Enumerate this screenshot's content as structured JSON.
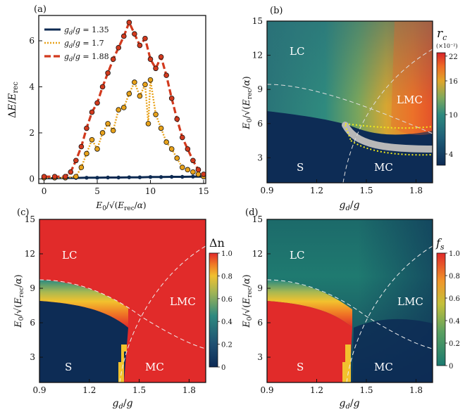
{
  "chart_data": [
    {
      "panel": "(a)",
      "type": "line",
      "xlabel": "E_0/√(E_rec/α)",
      "ylabel": "ΔE/E_rec",
      "xlim": [
        -0.5,
        15.2
      ],
      "ylim": [
        -0.2,
        7.1
      ],
      "xticks": [
        "0",
        "5",
        "10",
        "15"
      ],
      "yticks": [
        "0",
        "2",
        "4",
        "6"
      ],
      "legend_position": "top-left",
      "series": [
        {
          "name": "g_d/g = 1.35",
          "color": "#0d2a52",
          "style": "solid",
          "x": [
            0,
            1,
            2,
            3,
            4,
            5,
            6,
            7,
            8,
            9,
            10,
            11,
            12,
            13,
            14,
            15
          ],
          "y": [
            0.03,
            0.03,
            0.04,
            0.04,
            0.05,
            0.05,
            0.06,
            0.06,
            0.07,
            0.07,
            0.08,
            0.08,
            0.09,
            0.09,
            0.1,
            0.1
          ]
        },
        {
          "name": "g_d/g = 1.7",
          "color": "#e8a21a",
          "style": "dotted",
          "x": [
            0,
            1,
            2,
            3,
            3.5,
            4,
            4.5,
            5,
            5.5,
            6,
            6.5,
            7,
            7.5,
            8,
            8.5,
            9,
            9.5,
            9.8,
            10,
            10.5,
            11,
            11.5,
            12,
            12.5,
            13,
            13.5,
            14,
            14.5,
            15
          ],
          "y": [
            0.05,
            0.05,
            0.05,
            0.1,
            0.5,
            1.1,
            1.7,
            1.3,
            2.0,
            2.4,
            2.1,
            3.0,
            3.1,
            3.7,
            4.2,
            3.6,
            4.1,
            2.4,
            4.3,
            2.8,
            2.2,
            1.6,
            1.3,
            0.9,
            0.5,
            0.4,
            0.3,
            0.2,
            0.1
          ]
        },
        {
          "name": "g_d/g = 1.88",
          "color": "#d23a1e",
          "style": "dashed",
          "x": [
            0,
            1,
            2,
            2.5,
            3,
            3.5,
            4,
            4.5,
            5,
            5.5,
            6,
            6.5,
            7,
            7.5,
            8,
            8.5,
            9,
            9.5,
            10,
            10.5,
            11,
            11.5,
            12,
            12.5,
            13,
            13.5,
            14,
            14.5,
            15
          ],
          "y": [
            0.1,
            0.1,
            0.1,
            0.3,
            0.8,
            1.4,
            2.2,
            2.9,
            3.3,
            4.0,
            4.6,
            5.2,
            5.7,
            6.2,
            6.8,
            6.3,
            5.8,
            6.1,
            5.2,
            4.8,
            5.3,
            4.5,
            3.5,
            2.6,
            1.8,
            1.3,
            0.8,
            0.4,
            0.2
          ]
        }
      ]
    },
    {
      "panel": "(b)",
      "type": "heatmap",
      "xlabel": "g_d/g",
      "ylabel": "E_0/√(E_rec/α)",
      "xlim": [
        0.9,
        1.9
      ],
      "ylim": [
        0.8,
        15
      ],
      "xticks": [
        "0.9",
        "1.2",
        "1.5",
        "1.8"
      ],
      "yticks": [
        "3",
        "6",
        "9",
        "12",
        "15"
      ],
      "colorbar_label": "r_c",
      "colorbar_scale": "(×10⁻²)",
      "colorbar_ticks": [
        "4",
        "10",
        "16",
        "22"
      ],
      "region_labels": [
        "LC",
        "LMC",
        "S",
        "MC"
      ]
    },
    {
      "panel": "(c)",
      "type": "heatmap",
      "xlabel": "g_d/g",
      "ylabel": "E_0/√(E_rec/α)",
      "xlim": [
        0.9,
        1.9
      ],
      "ylim": [
        0.8,
        15
      ],
      "xticks": [
        "0.9",
        "1.2",
        "1.5",
        "1.8"
      ],
      "yticks": [
        "3",
        "6",
        "9",
        "12",
        "15"
      ],
      "colorbar_label": "Δn",
      "colorbar_ticks": [
        "0",
        "0.2",
        "0.4",
        "0.6",
        "0.8",
        "1.0"
      ],
      "region_labels": [
        "LC",
        "LMC",
        "S",
        "MC"
      ]
    },
    {
      "panel": "(d)",
      "type": "heatmap",
      "xlabel": "g_d/g",
      "ylabel": "E_0/√(E_rec/α)",
      "xlim": [
        0.9,
        1.9
      ],
      "ylim": [
        0.8,
        15
      ],
      "xticks": [
        "0.9",
        "1.2",
        "1.5",
        "1.8"
      ],
      "yticks": [
        "3",
        "6",
        "9",
        "12",
        "15"
      ],
      "colorbar_label": "f_s",
      "colorbar_ticks": [
        "0",
        "0.2",
        "0.4",
        "0.6",
        "0.8",
        "1.0"
      ],
      "region_labels": [
        "LC",
        "LMC",
        "S",
        "MC"
      ]
    }
  ],
  "colors": {
    "dark_blue": "#0d2c55",
    "teal": "#2a7a7d",
    "red": "#e0332a",
    "orange": "#f1a12b",
    "yellow": "#f0f020"
  }
}
